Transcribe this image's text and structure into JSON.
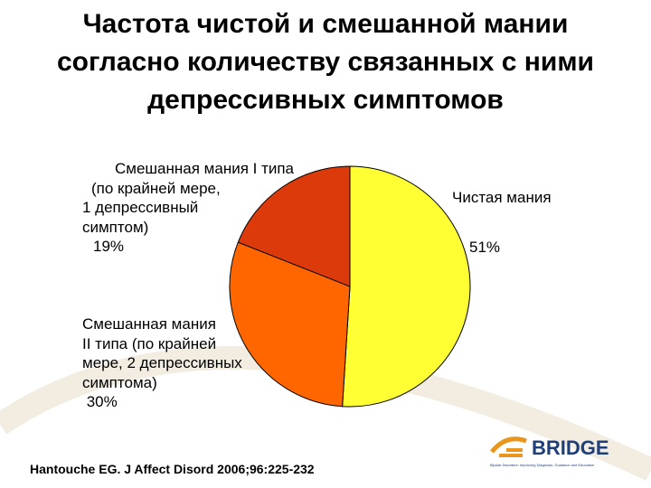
{
  "slide": {
    "title_lines": [
      "Частота чистой и смешанной мании",
      "согласно количеству связанных с ними",
      "депрессивных симптомов"
    ],
    "citation": "Hantouche EG. J Affect Disord 2006;96:225-232",
    "logo": {
      "text": "BRIDGE",
      "tagline": "Bipolar Disorders: Improving Diagnosis, Guidance and Education",
      "accent": "#e8961e",
      "text_color": "#1f3f7a"
    }
  },
  "chart_data": {
    "type": "pie",
    "title": "",
    "slices": [
      {
        "label_lines": [
          "Чистая мания"
        ],
        "value_text": "51%",
        "value": 51,
        "color": "#ffff33"
      },
      {
        "label_lines": [
          "Смешанная мания",
          "II типа (по крайней",
          "мере, 2 депрессивных",
          "симптома)"
        ],
        "value_text": " 30%",
        "value": 30,
        "color": "#ff6600"
      },
      {
        "label_lines": [
          "Смешанная мания I типа",
          "(по крайней мере,",
          "1 депрессивный",
          "симптом)"
        ],
        "value_text": "19%",
        "value": 19,
        "color": "#dd3a0c"
      }
    ]
  }
}
